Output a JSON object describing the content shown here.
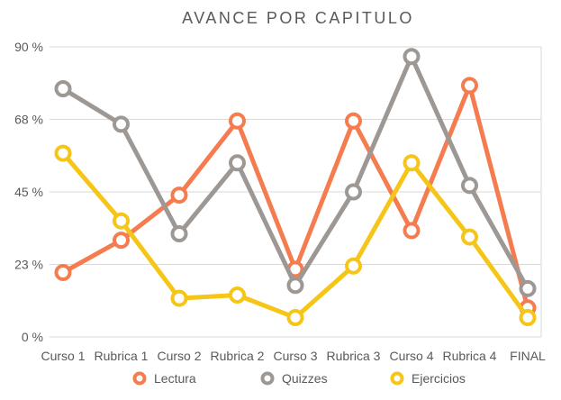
{
  "chart_data": {
    "type": "line",
    "title": "AVANCE POR CAPITULO",
    "xlabel": "",
    "ylabel": "",
    "categories": [
      "Curso 1",
      "Rubrica 1",
      "Curso 2",
      "Rubrica 2",
      "Curso 3",
      "Rubrica 3",
      "Curso 4",
      "Rubrica 4",
      "FINAL"
    ],
    "y_ticks": [
      {
        "value": 0,
        "label": "0 %"
      },
      {
        "value": 22.5,
        "label": "23 %"
      },
      {
        "value": 45,
        "label": "45 %"
      },
      {
        "value": 67.5,
        "label": "68 %"
      },
      {
        "value": 90,
        "label": "90 %"
      }
    ],
    "ylim": [
      0,
      90
    ],
    "grid": true,
    "legend_position": "bottom",
    "series": [
      {
        "name": "Lectura",
        "color": "#f47c4f",
        "values": [
          20,
          30,
          44,
          67,
          21,
          67,
          33,
          78,
          9
        ]
      },
      {
        "name": "Quizzes",
        "color": "#9e9894",
        "values": [
          77,
          66,
          32,
          54,
          16,
          45,
          87,
          47,
          15
        ]
      },
      {
        "name": "Ejercicios",
        "color": "#f5c518",
        "values": [
          57,
          36,
          12,
          13,
          6,
          22,
          54,
          31,
          6
        ]
      }
    ]
  }
}
